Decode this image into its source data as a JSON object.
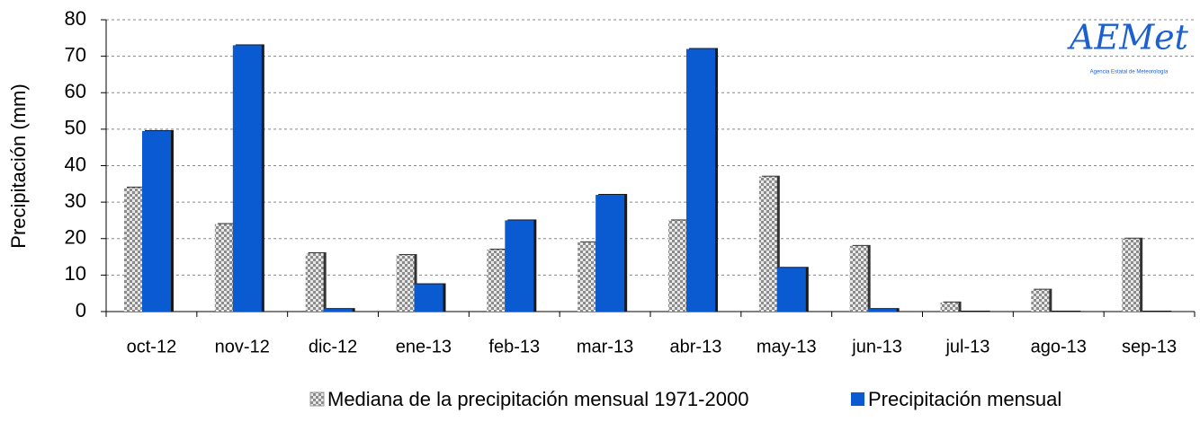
{
  "chart_data": {
    "type": "bar",
    "y_label": "Precipitación (mm)",
    "categories": [
      "oct-12",
      "nov-12",
      "dic-12",
      "ene-13",
      "feb-13",
      "mar-13",
      "abr-13",
      "may-13",
      "jun-13",
      "jul-13",
      "ago-13",
      "sep-13"
    ],
    "series": [
      {
        "name": "Mediana de la precipitación mensual 1971-2000",
        "color": "#9a9a9a",
        "values": [
          34,
          24,
          16,
          15.5,
          17,
          19,
          25,
          37,
          18,
          2.5,
          6,
          20
        ]
      },
      {
        "name": "Precipitación mensual",
        "color": "#0a5ad2",
        "values": [
          49.5,
          73,
          0.7,
          7.5,
          25,
          32,
          72,
          12,
          0.7,
          0,
          0,
          0
        ]
      }
    ],
    "ylim": [
      0,
      80
    ],
    "yticks": [
      0,
      10,
      20,
      30,
      40,
      50,
      60,
      70,
      80
    ],
    "grid": true,
    "logo": {
      "name": "AEMet",
      "subtitle": "Agencia Estatal de Meteorología"
    }
  }
}
